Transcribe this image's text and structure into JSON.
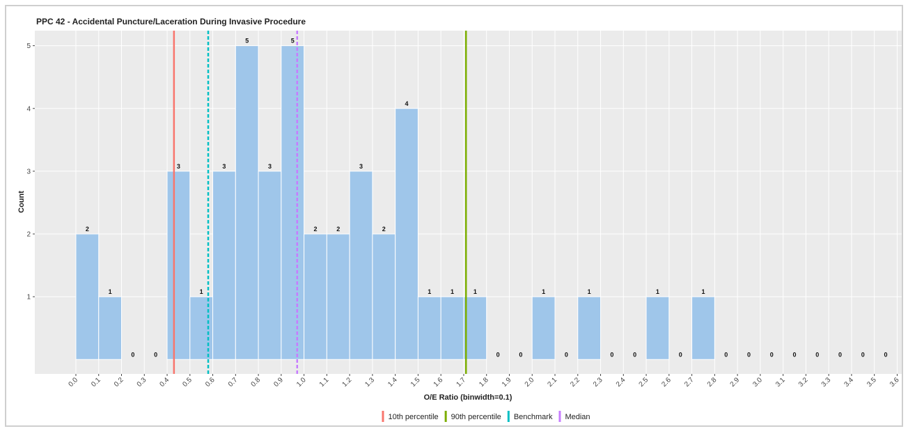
{
  "chart_data": {
    "type": "histogram",
    "title": "PPC 42 - Accidental Puncture/Laceration During Invasive Procedure",
    "x_label": "O/E Ratio (binwidth=0.1)",
    "y_label": "Count",
    "bins": [
      0,
      0.1,
      0.2,
      0.3,
      0.4,
      0.5,
      0.6,
      0.7,
      0.8,
      0.9,
      1,
      1.1,
      1.2,
      1.3,
      1.4,
      1.5,
      1.6,
      1.7,
      1.8,
      1.9,
      2,
      2.1,
      2.2,
      2.3,
      2.4,
      2.5,
      2.6,
      2.7,
      2.8,
      2.9,
      3,
      3.1,
      3.2,
      3.3,
      3.4,
      3.5,
      3.6
    ],
    "values": [
      2,
      1,
      0,
      0,
      3,
      1,
      3,
      5,
      3,
      5,
      2,
      2,
      3,
      2,
      4,
      1,
      1,
      1,
      0,
      0,
      1,
      0,
      1,
      0,
      0,
      1,
      0,
      1,
      0,
      0,
      0,
      0,
      0,
      0,
      0,
      0
    ],
    "color": "#9fc6ea",
    "xlim": [
      -0.18,
      3.62
    ],
    "ylim": [
      -0.23,
      5.24
    ],
    "xticks": [
      {
        "value": 0,
        "label": "0.0"
      },
      0.1,
      0.2,
      0.3,
      0.4,
      0.5,
      0.6,
      0.7,
      0.8,
      0.9,
      {
        "value": 1,
        "label": "1.0"
      },
      1.1,
      1.2,
      1.3,
      1.4,
      1.5,
      1.6,
      1.7,
      1.8,
      1.9,
      {
        "value": 2,
        "label": "2.0"
      },
      2.1,
      2.2,
      2.3,
      2.4,
      2.5,
      2.6,
      2.7,
      2.8,
      2.9,
      {
        "value": 3,
        "label": "3.0"
      },
      3.1,
      3.2,
      3.3,
      3.4,
      3.5,
      3.6
    ],
    "yticks": [
      1,
      2,
      3,
      4,
      5
    ],
    "grid": true,
    "legend": "bottom",
    "reference_lines": [
      {
        "name": "10th percentile",
        "value": 0.43,
        "color": "#f8766d",
        "dashed": false
      },
      {
        "name": "90th percentile",
        "value": 1.71,
        "color": "#7cae00",
        "dashed": false
      },
      {
        "name": "Benchmark",
        "value": 0.58,
        "color": "#00bfc4",
        "dashed": true
      },
      {
        "name": "Median",
        "value": 0.97,
        "color": "#c77cff",
        "dashed": true
      }
    ]
  }
}
